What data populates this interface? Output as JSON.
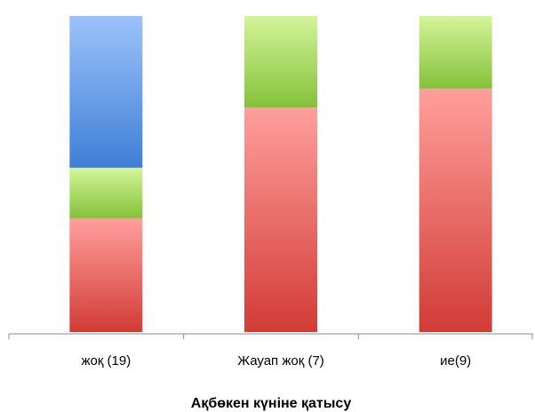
{
  "chart_data": {
    "type": "bar",
    "stacked": true,
    "percent": true,
    "categories": [
      "жоқ (19)",
      "Жауап жоқ (7)",
      "ие(9)"
    ],
    "series": [
      {
        "color": "#d9413f",
        "values": [
          36,
          71,
          77
        ]
      },
      {
        "color": "#8cc63f",
        "values": [
          16,
          29,
          23
        ]
      },
      {
        "color": "#5b8fdc",
        "values": [
          48,
          0,
          0
        ]
      }
    ],
    "xlabel": "Ақбөкен күніне қатысу",
    "ylabel": "",
    "ylim": [
      0,
      100
    ],
    "grid": false,
    "legend": "none"
  }
}
